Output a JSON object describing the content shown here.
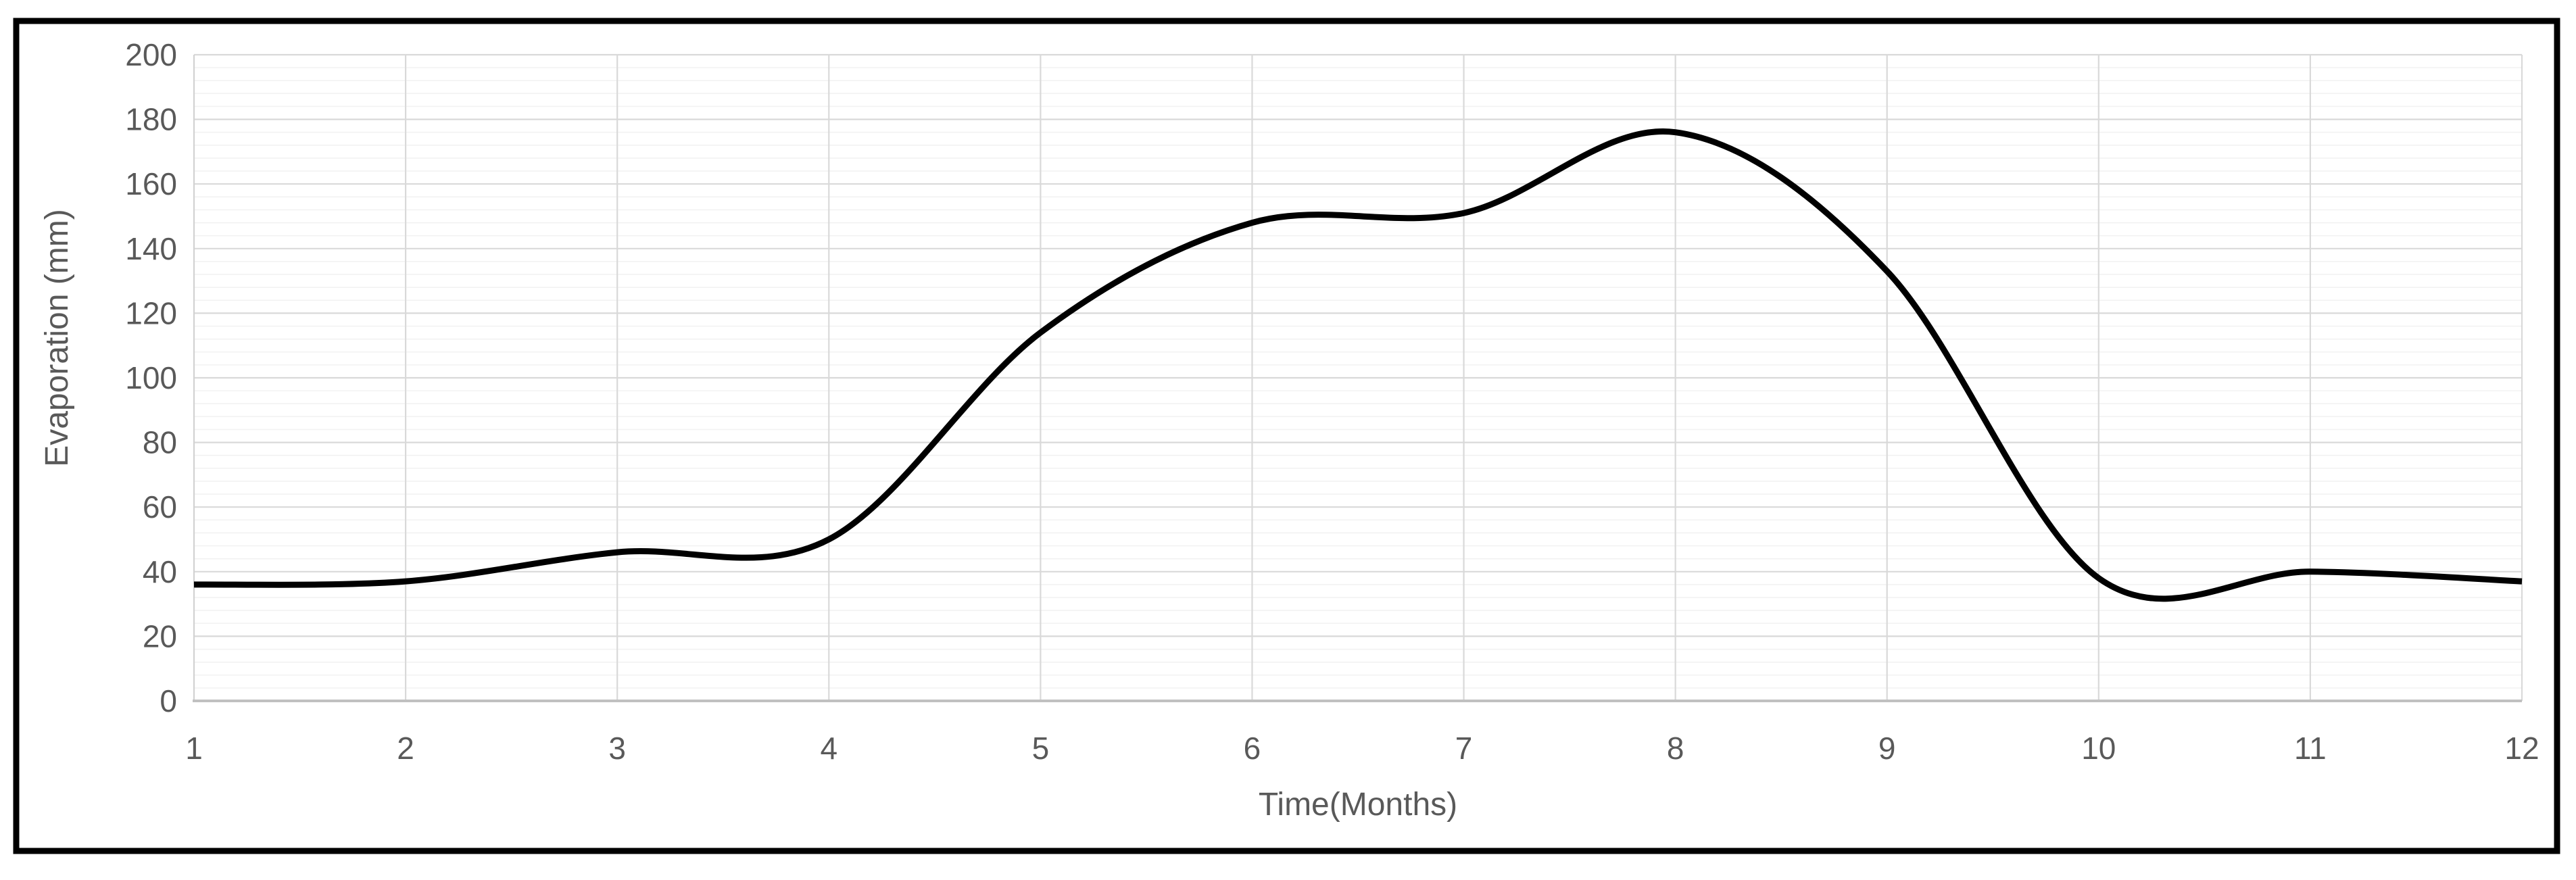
{
  "chart": {
    "title": "",
    "legend": "none",
    "y_axis": {
      "title": "Evaporation (mm)",
      "min": 0,
      "max": 200,
      "major_step": 20,
      "minor_step": 4,
      "tick_labels": [
        "0",
        "20",
        "40",
        "60",
        "80",
        "100",
        "120",
        "140",
        "160",
        "180",
        "200"
      ]
    },
    "x_axis": {
      "title": "Time(Months)",
      "min": 1,
      "max": 12,
      "major_step": 1,
      "tick_labels": [
        "1",
        "2",
        "3",
        "4",
        "5",
        "6",
        "7",
        "8",
        "9",
        "10",
        "11",
        "12"
      ]
    },
    "colors": {
      "series_line": "#000000",
      "label_text": "#595959",
      "grid_major": "#d9d9d9",
      "grid_minor": "#f2f2f2",
      "grid_vertical": "#d9d9d9",
      "axis_line_x": "#c0c0c0",
      "axis_line_y": "#d2d2d2",
      "frame_border": "#000000",
      "background": "#ffffff"
    }
  },
  "chart_data": {
    "type": "line",
    "smooth": true,
    "title": "",
    "xlabel": "Time(Months)",
    "ylabel": "Evaporation (mm)",
    "x": [
      1,
      2,
      3,
      4,
      5,
      6,
      7,
      8,
      9,
      10,
      11,
      12
    ],
    "values": [
      36,
      37,
      46,
      50,
      114,
      148,
      151,
      176,
      133,
      38,
      40,
      37
    ],
    "series_name": "Evaporation",
    "xlim": [
      1,
      12
    ],
    "ylim": [
      0,
      200
    ],
    "y_major_unit": 20,
    "y_minor_unit": 4,
    "grid": "horizontal-major+minor, vertical-major",
    "legend_position": "none",
    "marker": "none"
  }
}
